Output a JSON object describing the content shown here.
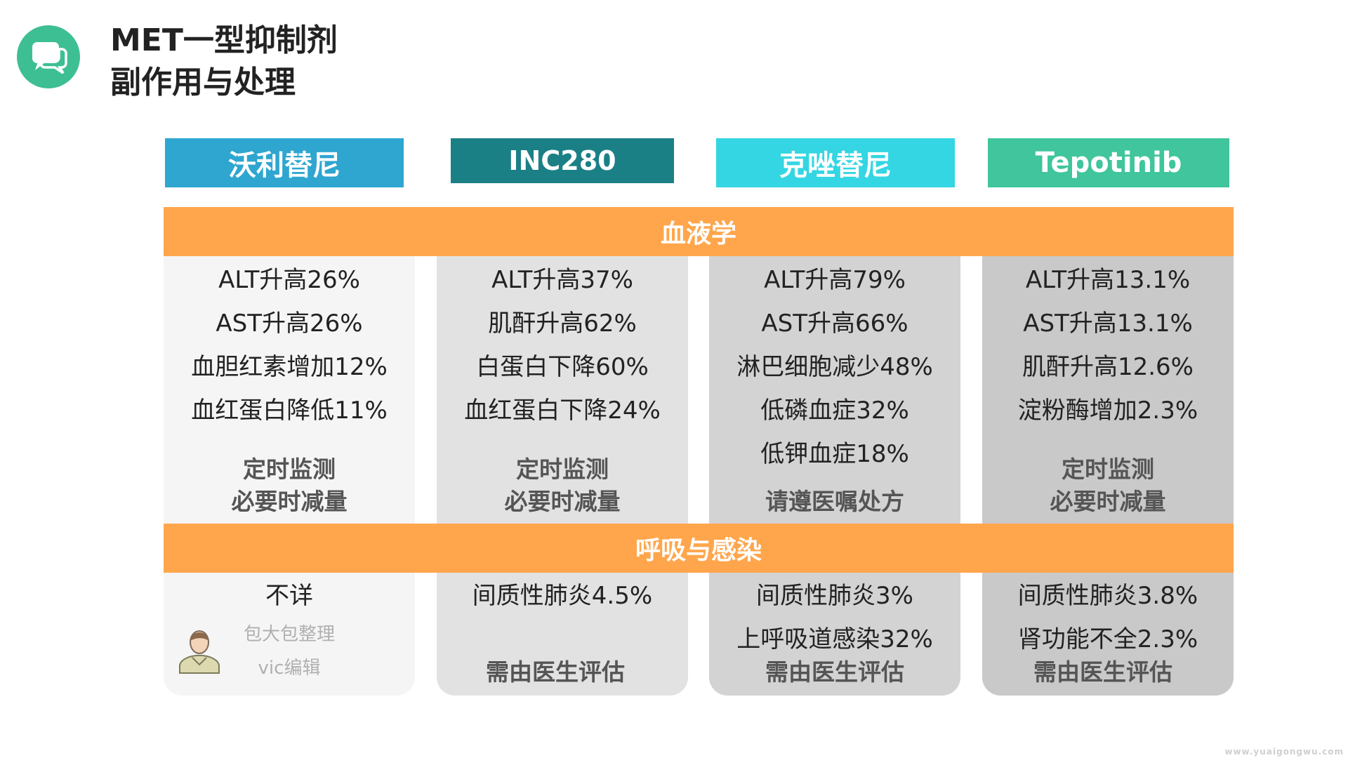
{
  "title": {
    "line1": "MET一型抑制剂",
    "line2": "副作用与处理"
  },
  "colors": {
    "logo": "#3dbf93",
    "band": "#ffa64c",
    "col_bgs": [
      "#f5f5f5",
      "#e2e2e2",
      "#d3d3d3",
      "#c9c9c9"
    ]
  },
  "icons": {
    "logo": "chat-bubbles-icon",
    "editor": "person-avatar-icon"
  },
  "sections": {
    "blood": "血液学",
    "resp": "呼吸与感染"
  },
  "columns": [
    {
      "name": "沃利替尼",
      "color": "#2ea6d0",
      "blood": [
        "ALT升高26%",
        "AST升高26%",
        "血胆红素增加12%",
        "血红蛋白降低11%"
      ],
      "blood_advice": [
        "定时监测",
        "必要时减量"
      ],
      "resp": [
        "不详"
      ],
      "resp_advice": []
    },
    {
      "name": "INC280",
      "color": "#1b8086",
      "blood": [
        "ALT升高37%",
        "肌酐升高62%",
        "白蛋白下降60%",
        "血红蛋白下降24%"
      ],
      "blood_advice": [
        "定时监测",
        "必要时减量"
      ],
      "resp": [
        "间质性肺炎4.5%"
      ],
      "resp_advice": [
        "需由医生评估"
      ]
    },
    {
      "name": "克唑替尼",
      "color": "#33d6e2",
      "blood": [
        "ALT升高79%",
        "AST升高66%",
        "淋巴细胞减少48%",
        "低磷血症32%",
        "低钾血症18%"
      ],
      "blood_advice": [
        "请遵医嘱处方"
      ],
      "resp": [
        "间质性肺炎3%",
        "上呼吸道感染32%"
      ],
      "resp_advice": [
        "需由医生评估"
      ]
    },
    {
      "name": "Tepotinib",
      "color": "#40c59c",
      "blood": [
        "ALT升高13.1%",
        "AST升高13.1%",
        "肌酐升高12.6%",
        "淀粉酶增加2.3%"
      ],
      "blood_advice": [
        "定时监测",
        "必要时减量"
      ],
      "resp": [
        "间质性肺炎3.8%",
        "肾功能不全2.3%"
      ],
      "resp_advice": [
        "需由医生评估"
      ]
    }
  ],
  "editor": {
    "line1": "包大包整理",
    "line2": "vic编辑"
  },
  "watermark": "www.yuaigongwu.com"
}
